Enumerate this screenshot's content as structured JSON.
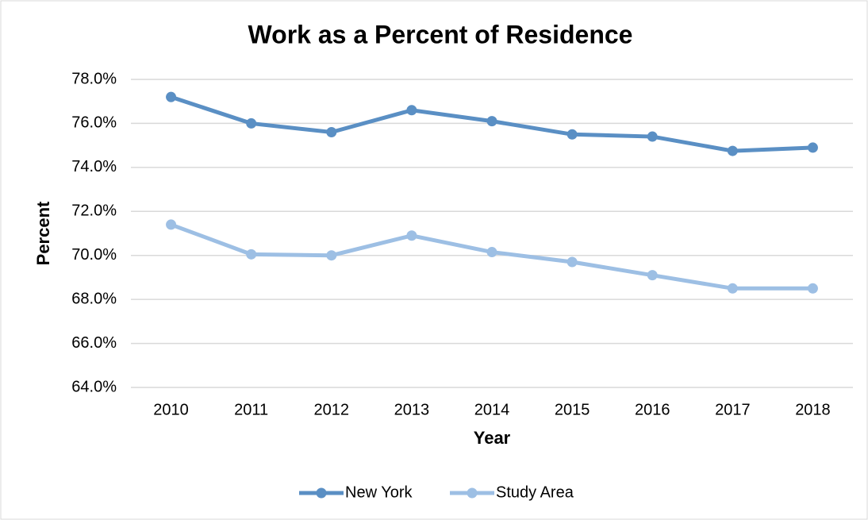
{
  "chart_data": {
    "type": "line",
    "title": "Work as a Percent of Residence",
    "x_label": "Year",
    "y_label": "Percent",
    "categories": [
      "2010",
      "2011",
      "2012",
      "2013",
      "2014",
      "2015",
      "2016",
      "2017",
      "2018"
    ],
    "series": [
      {
        "name": "New York",
        "color": "#5a8fc4",
        "values": [
          77.2,
          76.0,
          75.6,
          76.6,
          76.1,
          75.5,
          75.4,
          74.75,
          74.9
        ]
      },
      {
        "name": "Study Area",
        "color": "#9dbfe4",
        "values": [
          71.4,
          70.05,
          70.0,
          70.9,
          70.15,
          69.7,
          69.1,
          68.5,
          68.5
        ]
      }
    ],
    "ylim": [
      64,
      78
    ],
    "yticks": [
      {
        "value": 64,
        "label": "64.0%"
      },
      {
        "value": 66,
        "label": "66.0%"
      },
      {
        "value": 68,
        "label": "68.0%"
      },
      {
        "value": 70,
        "label": "70.0%"
      },
      {
        "value": 72,
        "label": "72.0%"
      },
      {
        "value": 74,
        "label": "74.0%"
      },
      {
        "value": 76,
        "label": "76.0%"
      },
      {
        "value": 78,
        "label": "78.0%"
      }
    ],
    "grid": true,
    "legend": "bottom"
  }
}
